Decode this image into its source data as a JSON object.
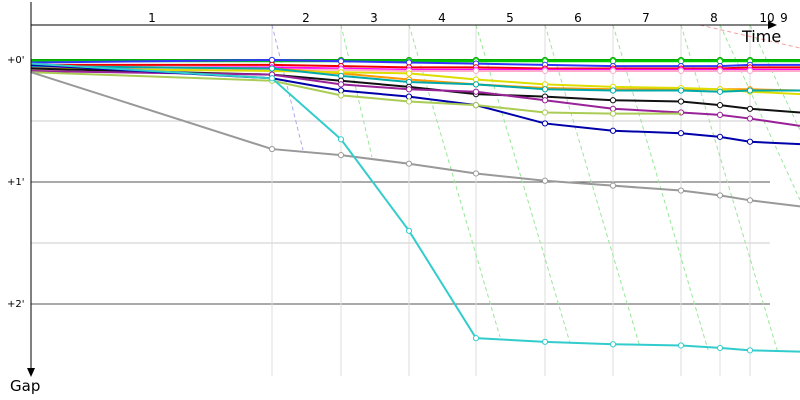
{
  "chart_data": {
    "type": "line",
    "title": "",
    "xlabel": "Time",
    "ylabel": "Gap",
    "x_ticks": [
      "1",
      "2",
      "3",
      "4",
      "5",
      "6",
      "7",
      "8",
      "10",
      "9"
    ],
    "y_ticks": [
      "+0'",
      "+1'",
      "+2'"
    ],
    "ylim": [
      0,
      2.6
    ],
    "grid": true,
    "series": [
      {
        "color": "#00aa00",
        "values": [
          0.0,
          0.0,
          0.0,
          0.0,
          0.0,
          0.0,
          0.0,
          0.0,
          0.0,
          0.0,
          0.0
        ]
      },
      {
        "color": "#00cc00",
        "values": [
          0.01,
          0.01,
          0.01,
          0.01,
          0.01,
          0.01,
          0.01,
          0.01,
          0.01,
          0.01,
          0.01
        ]
      },
      {
        "color": "#3333ff",
        "values": [
          0.02,
          0.0,
          0.01,
          0.02,
          0.03,
          0.04,
          0.05,
          0.05,
          0.05,
          0.04,
          0.04
        ]
      },
      {
        "color": "#ee0000",
        "values": [
          0.04,
          0.04,
          0.05,
          0.06,
          0.06,
          0.07,
          0.07,
          0.07,
          0.07,
          0.06,
          0.06
        ]
      },
      {
        "color": "#ff00ff",
        "values": [
          0.06,
          0.06,
          0.07,
          0.08,
          0.08,
          0.08,
          0.08,
          0.08,
          0.08,
          0.08,
          0.08
        ]
      },
      {
        "color": "#ffaacc",
        "values": [
          0.08,
          0.08,
          0.08,
          0.09,
          0.09,
          0.09,
          0.09,
          0.09,
          0.09,
          0.09,
          0.09
        ]
      },
      {
        "color": "#ff9900",
        "values": [
          0.05,
          0.07,
          0.11,
          0.16,
          0.2,
          0.23,
          0.24,
          0.24,
          0.24,
          0.24,
          0.25
        ]
      },
      {
        "color": "#dddd00",
        "values": [
          0.07,
          0.09,
          0.1,
          0.11,
          0.16,
          0.2,
          0.22,
          0.23,
          0.24,
          0.26,
          0.28
        ]
      },
      {
        "color": "#00aaaa",
        "values": [
          0.05,
          0.07,
          0.13,
          0.18,
          0.2,
          0.24,
          0.25,
          0.25,
          0.26,
          0.25,
          0.25
        ]
      },
      {
        "color": "#111111",
        "values": [
          0.07,
          0.12,
          0.17,
          0.22,
          0.28,
          0.3,
          0.33,
          0.34,
          0.37,
          0.4,
          0.43
        ]
      },
      {
        "color": "#992299",
        "values": [
          0.09,
          0.12,
          0.2,
          0.24,
          0.26,
          0.33,
          0.4,
          0.43,
          0.45,
          0.48,
          0.54
        ]
      },
      {
        "color": "#0000aa",
        "values": [
          0.04,
          0.15,
          0.25,
          0.3,
          0.37,
          0.52,
          0.58,
          0.6,
          0.63,
          0.67,
          0.69
        ]
      },
      {
        "color": "#aacc55",
        "values": [
          0.1,
          0.17,
          0.29,
          0.34,
          0.37,
          0.43,
          0.44,
          0.44,
          null,
          null,
          null
        ]
      },
      {
        "color": "#999999",
        "values": [
          0.1,
          0.73,
          0.78,
          0.85,
          0.93,
          0.99,
          1.03,
          1.07,
          1.11,
          1.15,
          1.2
        ]
      },
      {
        "color": "#33cccc",
        "values": [
          0.03,
          0.15,
          0.65,
          1.4,
          2.28,
          2.31,
          2.33,
          2.34,
          2.36,
          2.38,
          2.39
        ]
      }
    ]
  }
}
